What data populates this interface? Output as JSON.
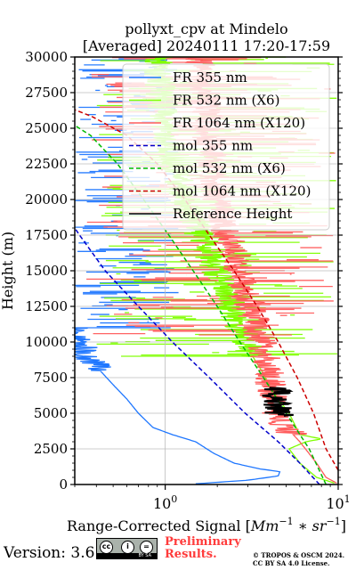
{
  "chart_data": {
    "type": "line",
    "title": "pollyxt_cpv at Mindelo",
    "subtitle": "[Averaged] 20240111 17:20-17:59",
    "xlabel": "Range-Corrected Signal [Mm^-1 * sr^-1]",
    "ylabel": "Height (m)",
    "xscale": "log",
    "xlim": [
      0.3,
      10
    ],
    "ylim": [
      0,
      30000
    ],
    "xticks": [
      1,
      10
    ],
    "xtick_labels": [
      "10^0",
      "10^1"
    ],
    "yticks": [
      0,
      2500,
      5000,
      7500,
      10000,
      12500,
      15000,
      17500,
      20000,
      22500,
      25000,
      27500,
      30000
    ],
    "ytick_labels": [
      "0",
      "2500",
      "5000",
      "7500",
      "10000",
      "12500",
      "15000",
      "17500",
      "20000",
      "22500",
      "25000",
      "27500",
      "30000"
    ],
    "grid": true,
    "legend_position": "top-right",
    "series": [
      {
        "name": "FR 355 nm",
        "color": "#1f77ff",
        "style": "solid",
        "noisy": true,
        "noise_from": 8000,
        "points": [
          [
            1.5,
            50
          ],
          [
            3.0,
            300
          ],
          [
            4.5,
            600
          ],
          [
            4.6,
            900
          ],
          [
            3.5,
            1100
          ],
          [
            2.5,
            1500
          ],
          [
            1.9,
            2200
          ],
          [
            1.5,
            3000
          ],
          [
            1.1,
            3500
          ],
          [
            0.85,
            4000
          ],
          [
            0.7,
            5000
          ],
          [
            0.6,
            6000
          ],
          [
            0.5,
            7000
          ],
          [
            0.42,
            8000
          ],
          [
            0.35,
            9000
          ],
          [
            0.32,
            10000
          ],
          [
            0.3,
            11000
          ]
        ]
      },
      {
        "name": "FR 532 nm (X6)",
        "color": "#7fff00",
        "style": "solid",
        "noisy": true,
        "noise_from": 9000,
        "points": [
          [
            9.5,
            100
          ],
          [
            7.5,
            500
          ],
          [
            6.0,
            1500
          ],
          [
            5.2,
            2500
          ],
          [
            6.5,
            3000
          ],
          [
            8.0,
            3200
          ],
          [
            6.0,
            3500
          ],
          [
            5.2,
            5000
          ],
          [
            4.5,
            6000
          ],
          [
            4.0,
            7000
          ],
          [
            3.6,
            8000
          ],
          [
            3.2,
            9000
          ],
          [
            2.5,
            12000
          ],
          [
            1.8,
            16000
          ],
          [
            1.3,
            20000
          ],
          [
            1.0,
            25000
          ],
          [
            0.9,
            30000
          ]
        ]
      },
      {
        "name": "FR 1064 nm (X120)",
        "color": "#ff5c5c",
        "style": "solid",
        "noisy": true,
        "noise_from": 3500,
        "points": [
          [
            9.8,
            100
          ],
          [
            8.5,
            500
          ],
          [
            7.5,
            1500
          ],
          [
            6.0,
            3000
          ],
          [
            4.6,
            4500
          ],
          [
            4.2,
            6000
          ],
          [
            4.0,
            7500
          ],
          [
            3.6,
            10000
          ],
          [
            3.0,
            13000
          ],
          [
            2.5,
            16000
          ],
          [
            2.0,
            20000
          ],
          [
            1.8,
            25000
          ],
          [
            1.6,
            30000
          ]
        ]
      },
      {
        "name": "mol 355 nm",
        "color": "#0000cc",
        "style": "dashed",
        "noisy": false,
        "points": [
          [
            7.8,
            0
          ],
          [
            6.0,
            1500
          ],
          [
            4.5,
            3000
          ],
          [
            2.9,
            5000
          ],
          [
            1.8,
            7500
          ],
          [
            1.1,
            10000
          ],
          [
            0.7,
            12500
          ],
          [
            0.45,
            15000
          ],
          [
            0.32,
            17500
          ],
          [
            0.3,
            18000
          ]
        ]
      },
      {
        "name": "mol 532 nm (X6)",
        "color": "#00bb00",
        "style": "dashed",
        "noisy": false,
        "points": [
          [
            8.5,
            0
          ],
          [
            6.8,
            2500
          ],
          [
            5.0,
            5000
          ],
          [
            3.7,
            7500
          ],
          [
            2.7,
            10000
          ],
          [
            2.0,
            12500
          ],
          [
            1.45,
            15000
          ],
          [
            1.05,
            17500
          ],
          [
            0.75,
            20000
          ],
          [
            0.53,
            22500
          ],
          [
            0.37,
            24500
          ],
          [
            0.3,
            25200
          ]
        ]
      },
      {
        "name": "mol 1064 nm (X120)",
        "color": "#cc0000",
        "style": "dashed",
        "noisy": false,
        "points": [
          [
            10,
            1000
          ],
          [
            8.5,
            2500
          ],
          [
            7.2,
            5000
          ],
          [
            5.8,
            7500
          ],
          [
            4.5,
            10000
          ],
          [
            3.4,
            12500
          ],
          [
            2.5,
            15000
          ],
          [
            1.8,
            17500
          ],
          [
            1.3,
            20000
          ],
          [
            0.9,
            22500
          ],
          [
            0.6,
            24500
          ],
          [
            0.38,
            25800
          ],
          [
            0.3,
            26300
          ]
        ]
      },
      {
        "name": "Reference Height",
        "color": "#000000",
        "style": "solid",
        "noisy": true,
        "noise_from": 4800,
        "points": [
          [
            4.6,
            4800
          ],
          [
            4.4,
            5400
          ],
          [
            4.5,
            6000
          ],
          [
            4.3,
            6500
          ],
          [
            4.5,
            6800
          ]
        ]
      }
    ],
    "bg_noise": [
      {
        "color": "#1f77ff",
        "from": 11000,
        "to": 30000,
        "x_min": 0.3,
        "x_max": 1.2
      },
      {
        "color": "#7fff00",
        "from": 9000,
        "to": 30000,
        "x_min": 0.4,
        "x_max": 10
      },
      {
        "color": "#ff5c5c",
        "from": 10500,
        "to": 30000,
        "x_min": 0.35,
        "x_max": 10
      }
    ]
  },
  "footer": {
    "version": "Version: 3.6",
    "cc_symbols": [
      "cc",
      "i",
      "="
    ],
    "cc_text": "BY   SA",
    "preliminary_line1": "Preliminary",
    "preliminary_line2": "Results.",
    "copyright_line1": "© TROPOS & OSCM 2024.",
    "copyright_line2": "CC BY SA 4.0 License."
  }
}
